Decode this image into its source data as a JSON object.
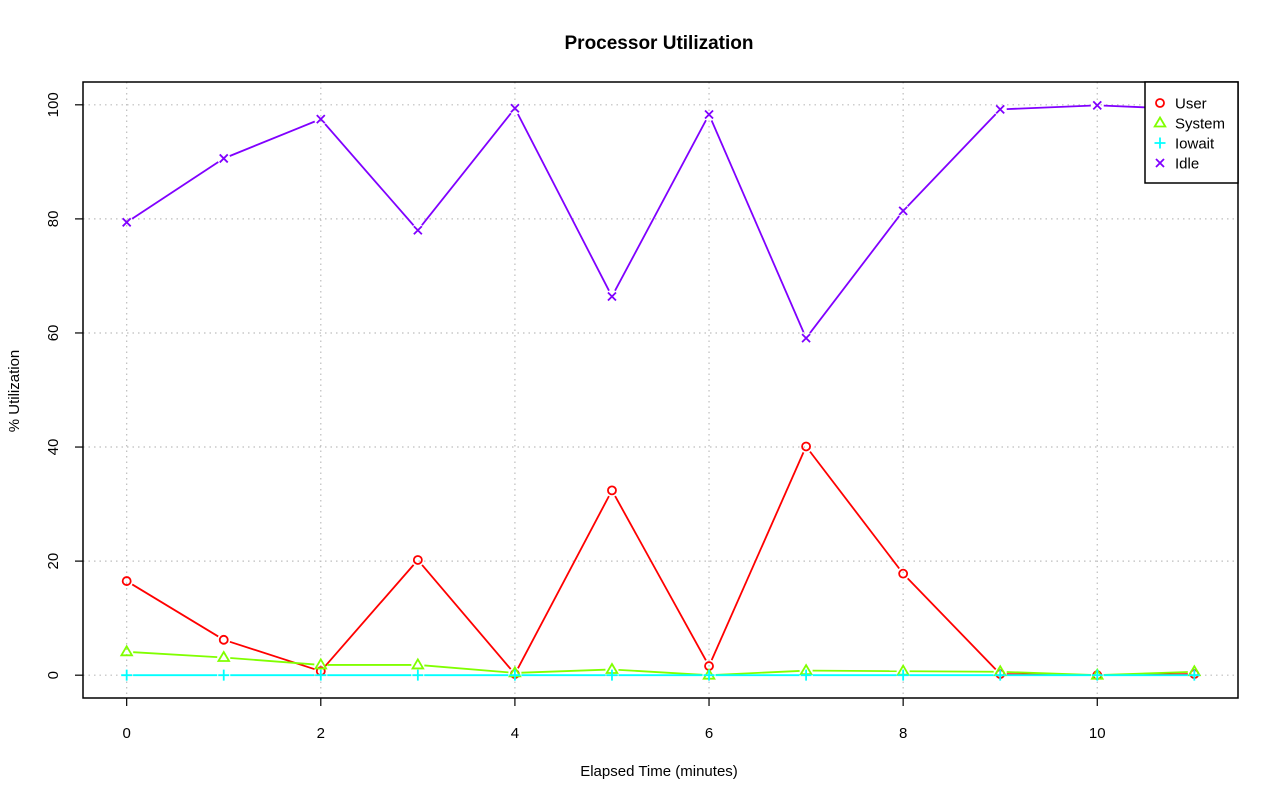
{
  "chart_data": {
    "type": "line",
    "title": "Processor Utilization",
    "xlabel": "Elapsed Time (minutes)",
    "ylabel": "% Utilization",
    "x": [
      0,
      1,
      2,
      3,
      4,
      5,
      6,
      7,
      8,
      9,
      10,
      11
    ],
    "xlim": [
      -0.45,
      11.45
    ],
    "ylim": [
      -4,
      104
    ],
    "xticks": [
      "0",
      "2",
      "4",
      "6",
      "8",
      "10"
    ],
    "yticks": [
      "0",
      "20",
      "40",
      "60",
      "80",
      "100"
    ],
    "grid": true,
    "legend_position": "top-right",
    "series": [
      {
        "name": "User",
        "color": "#ff0000",
        "marker": "circle",
        "values": [
          16.5,
          6.2,
          0.7,
          20.2,
          0.2,
          32.4,
          1.6,
          40.1,
          17.8,
          0.2,
          0.0,
          0.2
        ]
      },
      {
        "name": "System",
        "color": "#80ff00",
        "marker": "triangle",
        "values": [
          4.1,
          3.1,
          1.8,
          1.8,
          0.4,
          1.0,
          0.0,
          0.8,
          0.7,
          0.6,
          0.0,
          0.6
        ]
      },
      {
        "name": "Iowait",
        "color": "#00ffff",
        "marker": "plus",
        "values": [
          0,
          0,
          0,
          0,
          0,
          0,
          0,
          0,
          0,
          0,
          0,
          0
        ]
      },
      {
        "name": "Idle",
        "color": "#8000ff",
        "marker": "cross",
        "values": [
          79.4,
          90.6,
          97.5,
          78.0,
          99.4,
          66.4,
          98.3,
          59.1,
          81.4,
          99.2,
          99.9,
          99.2
        ]
      }
    ]
  }
}
